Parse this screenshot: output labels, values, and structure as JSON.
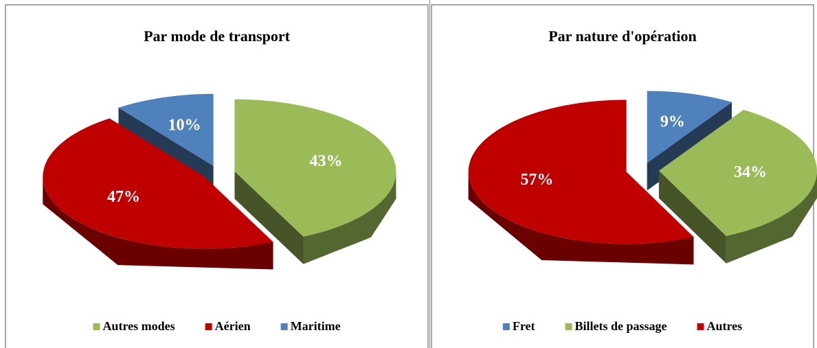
{
  "chart_data": [
    {
      "type": "pie",
      "title": "Par mode de transport",
      "categories": [
        "Autres modes",
        "Aérien",
        "Maritime"
      ],
      "values": [
        43,
        47,
        10
      ],
      "value_labels": [
        "43%",
        "47%",
        "10%"
      ],
      "colors": [
        "#9bbb59",
        "#c00000",
        "#4f81bd"
      ],
      "legend": "bottom"
    },
    {
      "type": "pie",
      "title": "Par nature d'opération",
      "categories": [
        "Fret",
        "Billets de passage",
        "Autres"
      ],
      "values": [
        9,
        34,
        57
      ],
      "value_labels": [
        "9%",
        "34%",
        "57%"
      ],
      "colors": [
        "#4f81bd",
        "#9bbb59",
        "#c00000"
      ],
      "legend": "bottom"
    }
  ]
}
